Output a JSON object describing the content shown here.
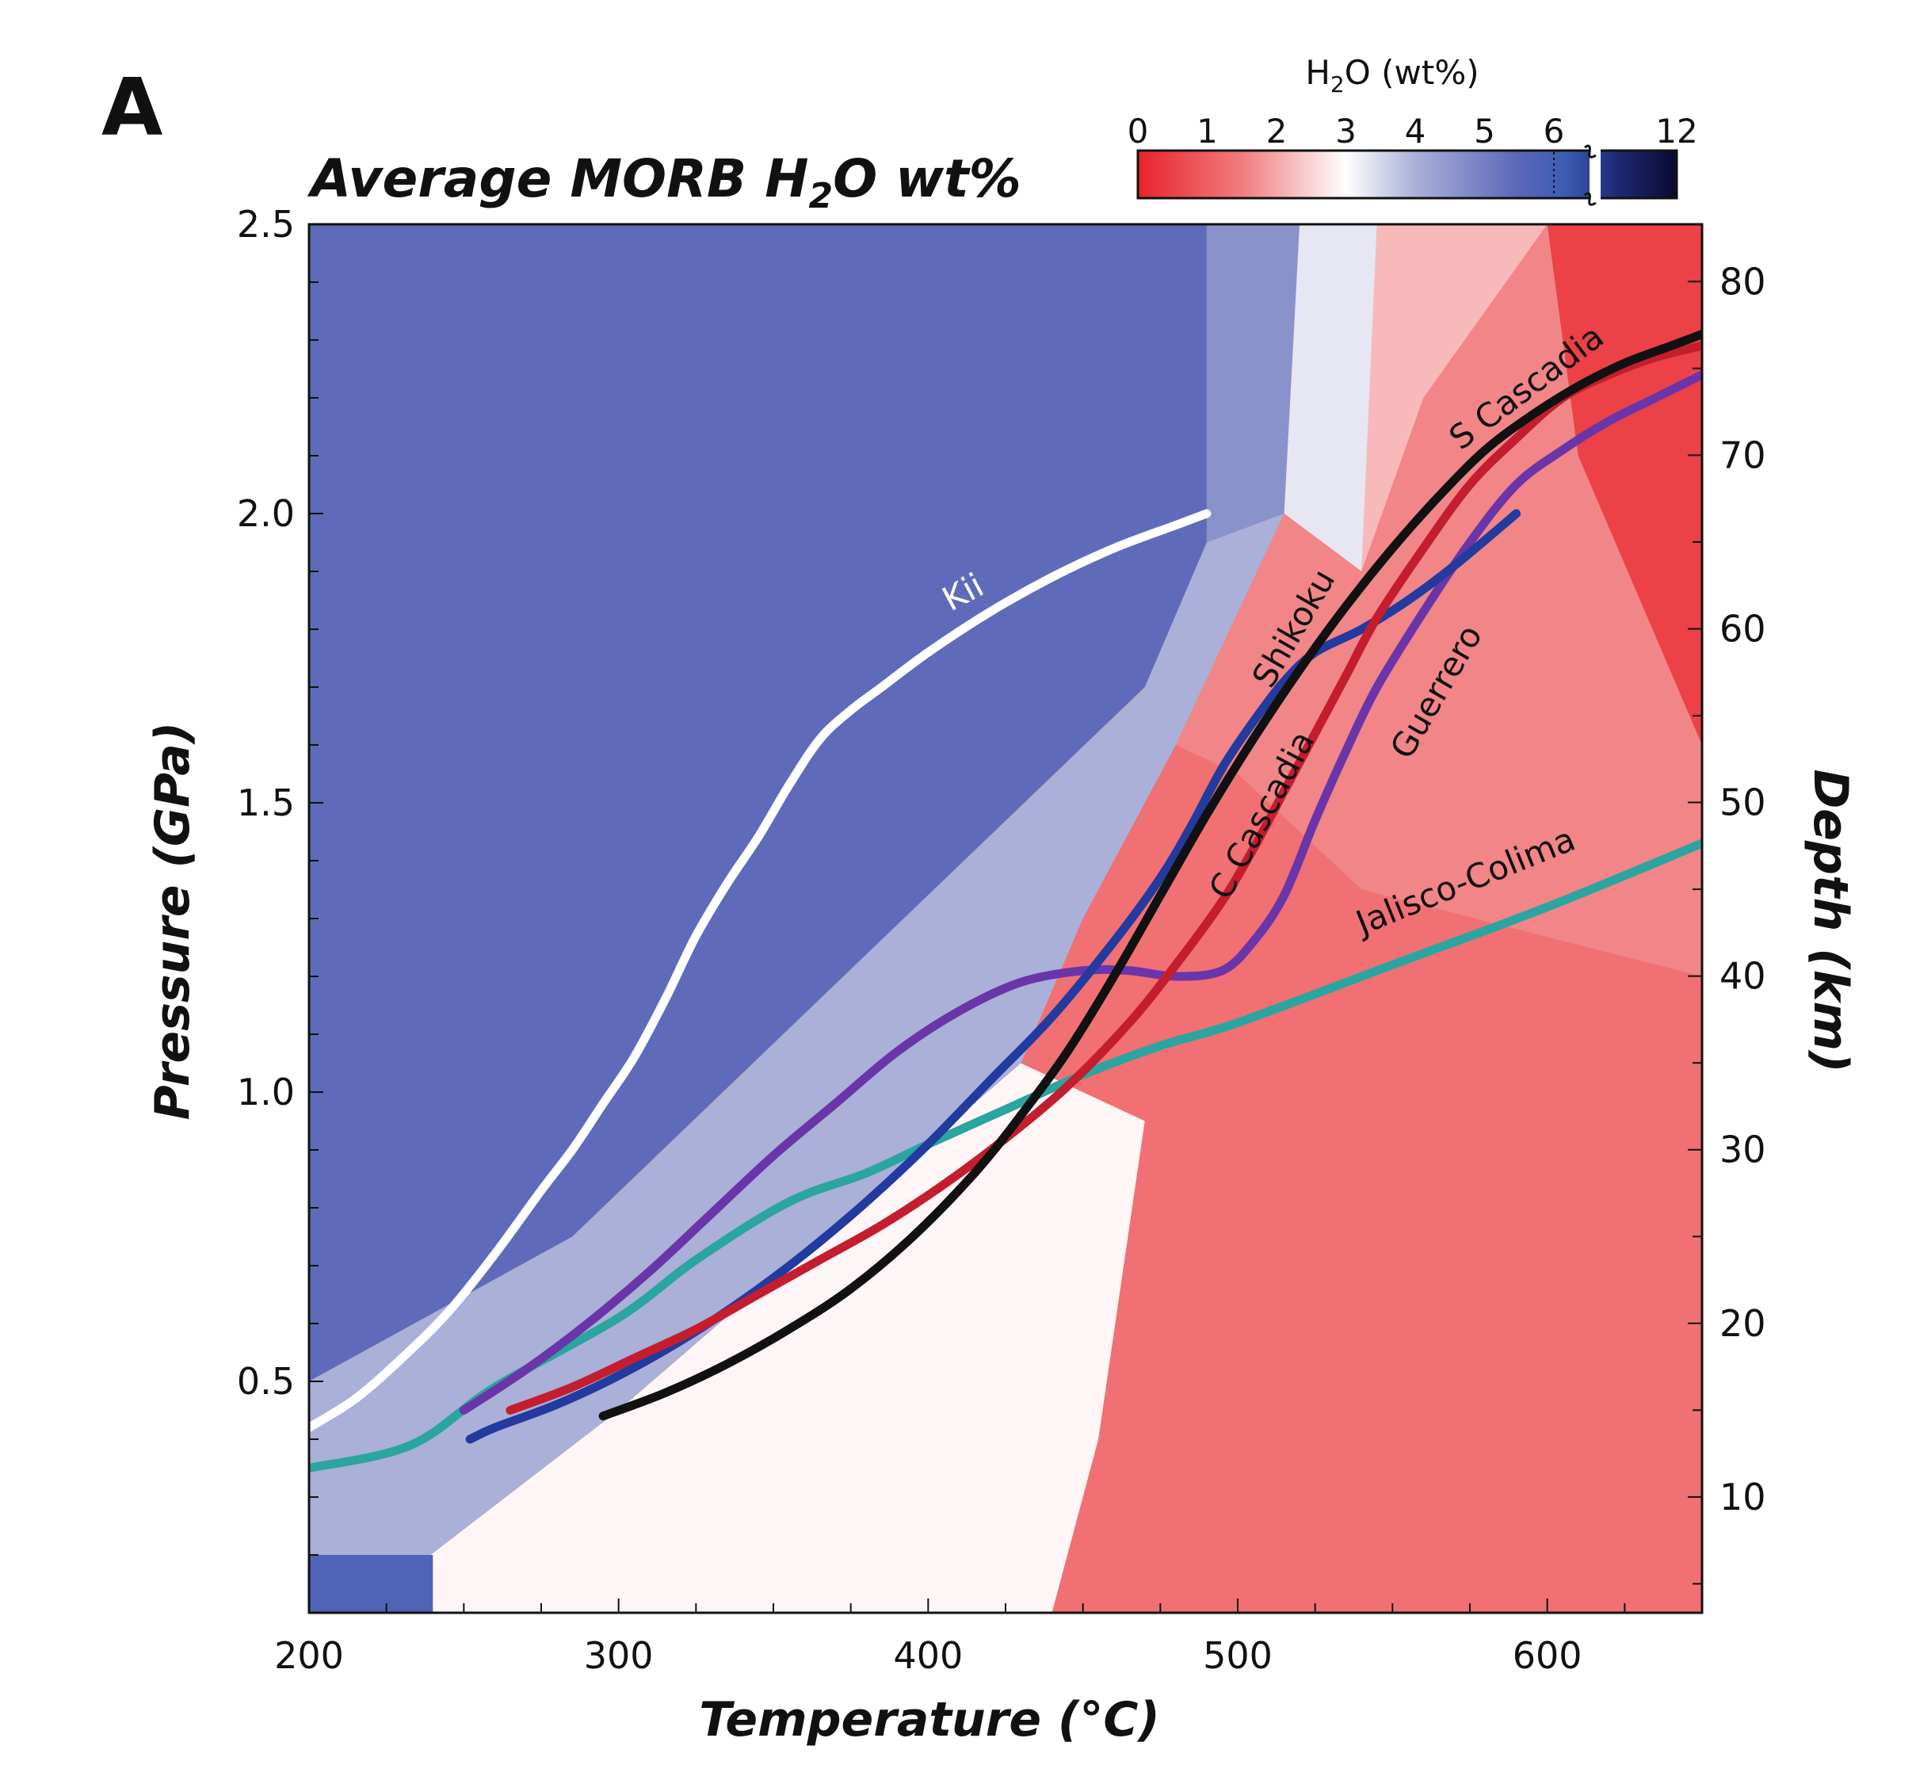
{
  "figure": {
    "panel_letter": "A",
    "title_parts": {
      "main": "Average MORB H",
      "sub": "2",
      "end": "O wt%"
    }
  },
  "colorbar": {
    "title_parts": {
      "main": "H",
      "sub": "2",
      "end": "O (wt%)"
    },
    "ticks": [
      "0",
      "1",
      "2",
      "3",
      "4",
      "5",
      "6",
      "12"
    ],
    "stops": [
      {
        "v": 0,
        "color": "#e8232b"
      },
      {
        "v": 1.5,
        "color": "#f17c7f"
      },
      {
        "v": 3.0,
        "color": "#ffffff"
      },
      {
        "v": 4.0,
        "color": "#aab0d8"
      },
      {
        "v": 5.5,
        "color": "#5a66b8"
      },
      {
        "v": 6.5,
        "color": "#3d5db4"
      },
      {
        "v": 9.0,
        "color": "#1f2a78"
      },
      {
        "v": 12,
        "color": "#0a0a2e"
      }
    ]
  },
  "chart_data": {
    "type": "line",
    "title": "Average MORB H2O wt%",
    "xlabel": "Temperature (°C)",
    "ylabel": "Pressure (GPa)",
    "y2label": "Depth (km)",
    "xlim": [
      200,
      650
    ],
    "ylim": [
      0.1,
      2.5
    ],
    "y2lim": [
      3.33,
      83.3
    ],
    "xticks": [
      200,
      300,
      400,
      500,
      600
    ],
    "xtick_labels": [
      "200",
      "300",
      "400",
      "500",
      "600"
    ],
    "yticks": [
      0.5,
      1.0,
      1.5,
      2.0,
      2.5
    ],
    "ytick_labels": [
      "0.5",
      "1.0",
      "1.5",
      "2.0",
      "2.5"
    ],
    "y2ticks": [
      10,
      20,
      30,
      40,
      50,
      60,
      70,
      80
    ],
    "y2tick_labels": [
      "10",
      "20",
      "30",
      "40",
      "50",
      "60",
      "70",
      "80"
    ],
    "background": {
      "type": "heatmap",
      "variable": "H2O (wt%)",
      "regions": [
        {
          "h2o": 5.4,
          "poly": [
            [
              200,
              2.5
            ],
            [
              490,
              2.5
            ],
            [
              490,
              1.95
            ],
            [
              470,
              1.7
            ],
            [
              285,
              0.75
            ],
            [
              200,
              0.5
            ]
          ]
        },
        {
          "h2o": 4.6,
          "poly": [
            [
              490,
              2.5
            ],
            [
              520,
              2.5
            ],
            [
              515,
              2.0
            ],
            [
              490,
              1.95
            ]
          ]
        },
        {
          "h2o": 3.3,
          "poly": [
            [
              520,
              2.5
            ],
            [
              545,
              2.5
            ],
            [
              540,
              1.9
            ],
            [
              515,
              2.0
            ]
          ]
        },
        {
          "h2o": 4.0,
          "poly": [
            [
              200,
              0.5
            ],
            [
              285,
              0.75
            ],
            [
              470,
              1.7
            ],
            [
              490,
              1.95
            ],
            [
              515,
              2.0
            ],
            [
              480,
              1.6
            ],
            [
              450,
              1.3
            ],
            [
              430,
              1.05
            ],
            [
              300,
              0.45
            ],
            [
              215,
              0.1
            ],
            [
              200,
              0.1
            ]
          ]
        },
        {
          "h2o": 2.9,
          "poly": [
            [
              215,
              0.1
            ],
            [
              300,
              0.45
            ],
            [
              430,
              1.05
            ],
            [
              470,
              0.95
            ],
            [
              455,
              0.4
            ],
            [
              440,
              0.1
            ]
          ]
        },
        {
          "h2o": 2.2,
          "poly": [
            [
              545,
              2.5
            ],
            [
              600,
              2.5
            ],
            [
              560,
              2.2
            ],
            [
              540,
              1.9
            ]
          ]
        },
        {
          "h2o": 1.6,
          "poly": [
            [
              515,
              2.0
            ],
            [
              540,
              1.9
            ],
            [
              560,
              2.2
            ],
            [
              600,
              2.5
            ],
            [
              650,
              2.5
            ],
            [
              650,
              1.2
            ],
            [
              540,
              1.35
            ],
            [
              500,
              1.55
            ],
            [
              480,
              1.6
            ]
          ]
        },
        {
          "h2o": 1.3,
          "poly": [
            [
              430,
              1.05
            ],
            [
              450,
              1.3
            ],
            [
              480,
              1.6
            ],
            [
              500,
              1.55
            ],
            [
              540,
              1.35
            ],
            [
              650,
              1.2
            ],
            [
              650,
              0.1
            ],
            [
              440,
              0.1
            ],
            [
              455,
              0.4
            ],
            [
              470,
              0.95
            ]
          ]
        },
        {
          "h2o": 0.5,
          "poly": [
            [
              600,
              2.5
            ],
            [
              650,
              2.5
            ],
            [
              650,
              1.6
            ],
            [
              610,
              2.1
            ]
          ]
        },
        {
          "h2o": 5.8,
          "poly": [
            [
              200,
              0.1
            ],
            [
              240,
              0.1
            ],
            [
              240,
              0.2
            ],
            [
              200,
              0.2
            ]
          ]
        }
      ]
    },
    "series": [
      {
        "name": "Kii",
        "color": "#ffffff",
        "points": [
          [
            200,
            0.42
          ],
          [
            215,
            0.47
          ],
          [
            230,
            0.54
          ],
          [
            245,
            0.62
          ],
          [
            260,
            0.72
          ],
          [
            275,
            0.83
          ],
          [
            285,
            0.9
          ],
          [
            295,
            0.98
          ],
          [
            305,
            1.06
          ],
          [
            315,
            1.16
          ],
          [
            325,
            1.27
          ],
          [
            335,
            1.36
          ],
          [
            345,
            1.44
          ],
          [
            355,
            1.53
          ],
          [
            365,
            1.61
          ],
          [
            375,
            1.66
          ],
          [
            385,
            1.7
          ],
          [
            400,
            1.76
          ],
          [
            420,
            1.83
          ],
          [
            440,
            1.89
          ],
          [
            460,
            1.94
          ],
          [
            480,
            1.98
          ],
          [
            490,
            2.0
          ]
        ]
      },
      {
        "name": "Jalisco-Colima",
        "color": "#2aa5a0",
        "points": [
          [
            200,
            0.35
          ],
          [
            233,
            0.39
          ],
          [
            260,
            0.49
          ],
          [
            300,
            0.61
          ],
          [
            325,
            0.71
          ],
          [
            355,
            0.81
          ],
          [
            380,
            0.86
          ],
          [
            400,
            0.91
          ],
          [
            425,
            0.97
          ],
          [
            450,
            1.03
          ],
          [
            475,
            1.08
          ],
          [
            500,
            1.12
          ],
          [
            550,
            1.22
          ],
          [
            600,
            1.32
          ],
          [
            650,
            1.43
          ]
        ]
      },
      {
        "name": "Guerrero",
        "color": "#6a35a8",
        "points": [
          [
            250,
            0.45
          ],
          [
            270,
            0.52
          ],
          [
            290,
            0.6
          ],
          [
            310,
            0.69
          ],
          [
            330,
            0.79
          ],
          [
            350,
            0.89
          ],
          [
            370,
            0.98
          ],
          [
            390,
            1.07
          ],
          [
            410,
            1.14
          ],
          [
            430,
            1.19
          ],
          [
            450,
            1.21
          ],
          [
            465,
            1.21
          ],
          [
            480,
            1.2
          ],
          [
            495,
            1.21
          ],
          [
            505,
            1.26
          ],
          [
            515,
            1.34
          ],
          [
            525,
            1.47
          ],
          [
            535,
            1.59
          ],
          [
            545,
            1.7
          ],
          [
            560,
            1.83
          ],
          [
            575,
            1.95
          ],
          [
            590,
            2.05
          ],
          [
            605,
            2.11
          ],
          [
            620,
            2.16
          ],
          [
            635,
            2.2
          ],
          [
            650,
            2.24
          ]
        ]
      },
      {
        "name": "Shikoku",
        "color": "#233a9e",
        "points": [
          [
            252,
            0.4
          ],
          [
            260,
            0.42
          ],
          [
            280,
            0.46
          ],
          [
            300,
            0.51
          ],
          [
            320,
            0.57
          ],
          [
            340,
            0.64
          ],
          [
            360,
            0.72
          ],
          [
            380,
            0.81
          ],
          [
            400,
            0.91
          ],
          [
            420,
            1.02
          ],
          [
            440,
            1.13
          ],
          [
            460,
            1.26
          ],
          [
            475,
            1.37
          ],
          [
            485,
            1.46
          ],
          [
            495,
            1.56
          ],
          [
            505,
            1.64
          ],
          [
            515,
            1.71
          ],
          [
            525,
            1.76
          ],
          [
            540,
            1.8
          ],
          [
            555,
            1.85
          ],
          [
            570,
            1.91
          ],
          [
            590,
            2.0
          ]
        ]
      },
      {
        "name": "C Cascadia",
        "color": "#c41d2e",
        "points": [
          [
            265,
            0.45
          ],
          [
            285,
            0.49
          ],
          [
            305,
            0.54
          ],
          [
            325,
            0.59
          ],
          [
            345,
            0.65
          ],
          [
            365,
            0.71
          ],
          [
            385,
            0.77
          ],
          [
            405,
            0.84
          ],
          [
            425,
            0.92
          ],
          [
            445,
            1.01
          ],
          [
            465,
            1.12
          ],
          [
            480,
            1.22
          ],
          [
            495,
            1.33
          ],
          [
            505,
            1.42
          ],
          [
            515,
            1.52
          ],
          [
            525,
            1.62
          ],
          [
            535,
            1.72
          ],
          [
            545,
            1.82
          ],
          [
            560,
            1.94
          ],
          [
            575,
            2.05
          ],
          [
            590,
            2.13
          ],
          [
            605,
            2.2
          ],
          [
            620,
            2.24
          ],
          [
            635,
            2.27
          ],
          [
            650,
            2.29
          ]
        ]
      },
      {
        "name": "S Cascadia",
        "color": "#111111",
        "points": [
          [
            295,
            0.44
          ],
          [
            315,
            0.48
          ],
          [
            335,
            0.53
          ],
          [
            355,
            0.59
          ],
          [
            375,
            0.66
          ],
          [
            395,
            0.75
          ],
          [
            415,
            0.86
          ],
          [
            430,
            0.96
          ],
          [
            445,
            1.07
          ],
          [
            460,
            1.2
          ],
          [
            475,
            1.34
          ],
          [
            490,
            1.48
          ],
          [
            505,
            1.61
          ],
          [
            520,
            1.73
          ],
          [
            535,
            1.84
          ],
          [
            550,
            1.94
          ],
          [
            565,
            2.03
          ],
          [
            580,
            2.11
          ],
          [
            595,
            2.17
          ],
          [
            610,
            2.22
          ],
          [
            625,
            2.26
          ],
          [
            640,
            2.29
          ],
          [
            650,
            2.31
          ]
        ]
      }
    ],
    "annotations": [
      {
        "text": "Kii",
        "series": "Kii"
      },
      {
        "text": "Shikoku",
        "series": "Shikoku"
      },
      {
        "text": "C Cascadia",
        "series": "C Cascadia"
      },
      {
        "text": "Guerrero",
        "series": "Guerrero"
      },
      {
        "text": "S Cascadia",
        "series": "S Cascadia"
      },
      {
        "text": "Jalisco-Colima",
        "series": "Jalisco-Colima"
      }
    ]
  }
}
